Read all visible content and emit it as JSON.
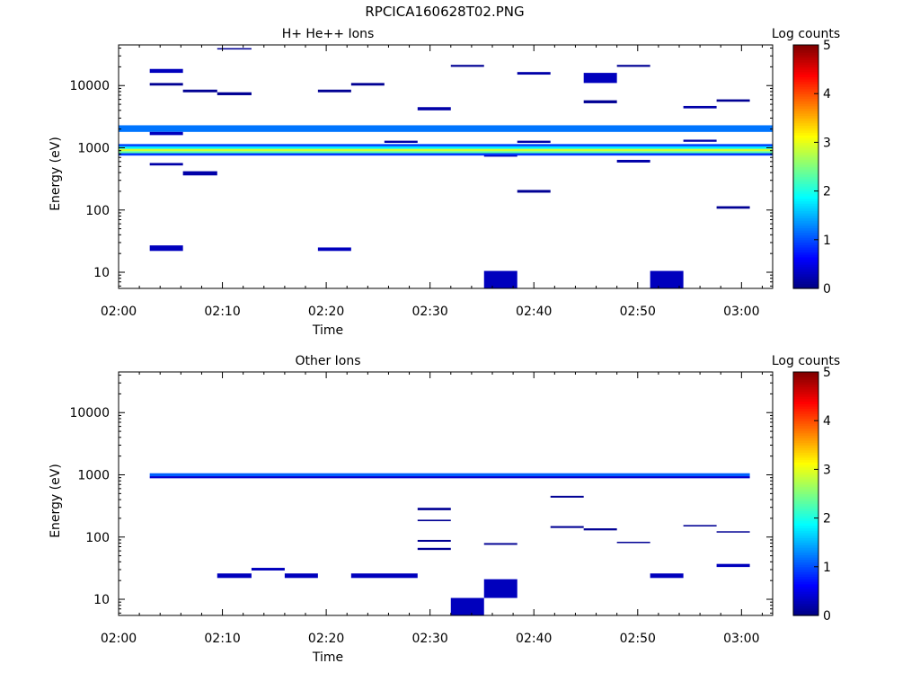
{
  "figure_title": "RPCICA160628T02.PNG",
  "chart_data": [
    {
      "type": "heatmap",
      "title": "H+ He++ Ions",
      "xlabel": "Time",
      "ylabel": "Energy (eV)",
      "x_ticks": [
        "02:00",
        "02:10",
        "02:20",
        "02:30",
        "02:40",
        "02:50",
        "03:00"
      ],
      "y_ticks": [
        "10",
        "100",
        "1000",
        "10000"
      ],
      "y_scale": "log",
      "xlim_minutes": [
        0,
        63
      ],
      "ylim": [
        5.5,
        45000
      ],
      "colorbar": {
        "label": "Log counts",
        "range": [
          0,
          5
        ],
        "ticks": [
          "0",
          "1",
          "2",
          "3",
          "4",
          "5"
        ]
      },
      "cells": [
        {
          "t0": 0,
          "t1": 63,
          "e0": 1800,
          "e1": 2300,
          "v": 1.2
        },
        {
          "t0": 0,
          "t1": 63,
          "e0": 1050,
          "e1": 1150,
          "v": 1.0
        },
        {
          "t0": 0,
          "t1": 63,
          "e0": 960,
          "e1": 1050,
          "v": 1.8
        },
        {
          "t0": 0,
          "t1": 63,
          "e0": 880,
          "e1": 960,
          "v": 2.9
        },
        {
          "t0": 0,
          "t1": 63,
          "e0": 820,
          "e1": 880,
          "v": 2.3
        },
        {
          "t0": 0,
          "t1": 63,
          "e0": 750,
          "e1": 820,
          "v": 0.9
        },
        {
          "t0": 3,
          "t1": 6.2,
          "e0": 16000,
          "e1": 18500,
          "v": 0.3
        },
        {
          "t0": 3,
          "t1": 6.2,
          "e0": 1600,
          "e1": 1800,
          "v": 0.3
        },
        {
          "t0": 3,
          "t1": 6.2,
          "e0": 10000,
          "e1": 11000,
          "v": 0.1
        },
        {
          "t0": 3,
          "t1": 6.2,
          "e0": 520,
          "e1": 570,
          "v": 0.2
        },
        {
          "t0": 3,
          "t1": 6.2,
          "e0": 22,
          "e1": 27,
          "v": 0.3
        },
        {
          "t0": 6.2,
          "t1": 9.5,
          "e0": 360,
          "e1": 420,
          "v": 0.2
        },
        {
          "t0": 6.2,
          "t1": 9.5,
          "e0": 7800,
          "e1": 8600,
          "v": 0.1
        },
        {
          "t0": 9.5,
          "t1": 12.8,
          "e0": 38000,
          "e1": 40000,
          "v": 0.1
        },
        {
          "t0": 9.5,
          "t1": 12.8,
          "e0": 7000,
          "e1": 7800,
          "v": 0.1
        },
        {
          "t0": 19.2,
          "t1": 22.4,
          "e0": 22,
          "e1": 25,
          "v": 0.3
        },
        {
          "t0": 19.2,
          "t1": 22.4,
          "e0": 7800,
          "e1": 8600,
          "v": 0.1
        },
        {
          "t0": 22.4,
          "t1": 25.6,
          "e0": 10000,
          "e1": 11000,
          "v": 0.1
        },
        {
          "t0": 25.6,
          "t1": 28.8,
          "e0": 1200,
          "e1": 1300,
          "v": 0.2
        },
        {
          "t0": 28.8,
          "t1": 32,
          "e0": 4000,
          "e1": 4500,
          "v": 0.2
        },
        {
          "t0": 32,
          "t1": 35.2,
          "e0": 20000,
          "e1": 21500,
          "v": 0.1
        },
        {
          "t0": 35.2,
          "t1": 38.4,
          "e0": 5.5,
          "e1": 10.5,
          "v": 0.3
        },
        {
          "t0": 35.2,
          "t1": 38.4,
          "e0": 720,
          "e1": 760,
          "v": 0.3
        },
        {
          "t0": 38.4,
          "t1": 41.6,
          "e0": 15000,
          "e1": 16500,
          "v": 0.2
        },
        {
          "t0": 38.4,
          "t1": 41.6,
          "e0": 1200,
          "e1": 1300,
          "v": 0.2
        },
        {
          "t0": 38.4,
          "t1": 41.6,
          "e0": 190,
          "e1": 210,
          "v": 0.1
        },
        {
          "t0": 44.8,
          "t1": 48,
          "e0": 11000,
          "e1": 16000,
          "v": 0.3
        },
        {
          "t0": 44.8,
          "t1": 48,
          "e0": 5200,
          "e1": 5800,
          "v": 0.1
        },
        {
          "t0": 48,
          "t1": 51.2,
          "e0": 580,
          "e1": 640,
          "v": 0.2
        },
        {
          "t0": 48,
          "t1": 51.2,
          "e0": 20000,
          "e1": 21500,
          "v": 0.1
        },
        {
          "t0": 51.2,
          "t1": 54.4,
          "e0": 5.5,
          "e1": 10.5,
          "v": 0.3
        },
        {
          "t0": 54.4,
          "t1": 57.6,
          "e0": 4300,
          "e1": 4700,
          "v": 0.2
        },
        {
          "t0": 54.4,
          "t1": 57.6,
          "e0": 1250,
          "e1": 1350,
          "v": 0.2
        },
        {
          "t0": 57.6,
          "t1": 60.8,
          "e0": 5500,
          "e1": 6000,
          "v": 0.1
        },
        {
          "t0": 57.6,
          "t1": 60.8,
          "e0": 105,
          "e1": 115,
          "v": 0.1
        }
      ]
    },
    {
      "type": "heatmap",
      "title": "Other Ions",
      "xlabel": "Time",
      "ylabel": "Energy (eV)",
      "x_ticks": [
        "02:00",
        "02:10",
        "02:20",
        "02:30",
        "02:40",
        "02:50",
        "03:00"
      ],
      "y_ticks": [
        "10",
        "100",
        "1000",
        "10000"
      ],
      "y_scale": "log",
      "xlim_minutes": [
        0,
        63
      ],
      "ylim": [
        5.5,
        45000
      ],
      "colorbar": {
        "label": "Log counts",
        "range": [
          0,
          5
        ],
        "ticks": [
          "0",
          "1",
          "2",
          "3",
          "4",
          "5"
        ]
      },
      "cells": [
        {
          "t0": 3,
          "t1": 60.8,
          "e0": 950,
          "e1": 1060,
          "v": 1.1
        },
        {
          "t0": 3,
          "t1": 60.8,
          "e0": 880,
          "e1": 950,
          "v": 0.4
        },
        {
          "t0": 9.5,
          "t1": 12.8,
          "e0": 22,
          "e1": 26,
          "v": 0.3
        },
        {
          "t0": 12.8,
          "t1": 16,
          "e0": 29,
          "e1": 32,
          "v": 0.3
        },
        {
          "t0": 16,
          "t1": 19.2,
          "e0": 22,
          "e1": 26,
          "v": 0.3
        },
        {
          "t0": 22.4,
          "t1": 28.8,
          "e0": 22,
          "e1": 26,
          "v": 0.3
        },
        {
          "t0": 28.8,
          "t1": 32,
          "e0": 270,
          "e1": 295,
          "v": 0.1
        },
        {
          "t0": 28.8,
          "t1": 32,
          "e0": 180,
          "e1": 190,
          "v": 0.1
        },
        {
          "t0": 28.8,
          "t1": 32,
          "e0": 84,
          "e1": 90,
          "v": 0.1
        },
        {
          "t0": 28.8,
          "t1": 32,
          "e0": 62,
          "e1": 67,
          "v": 0.1
        },
        {
          "t0": 32,
          "t1": 35.2,
          "e0": 5.5,
          "e1": 10.5,
          "v": 0.3
        },
        {
          "t0": 35.2,
          "t1": 38.4,
          "e0": 10.5,
          "e1": 21,
          "v": 0.3
        },
        {
          "t0": 35.2,
          "t1": 38.4,
          "e0": 75,
          "e1": 80,
          "v": 0.1
        },
        {
          "t0": 41.6,
          "t1": 44.8,
          "e0": 430,
          "e1": 460,
          "v": 0.1
        },
        {
          "t0": 41.6,
          "t1": 44.8,
          "e0": 140,
          "e1": 150,
          "v": 0.1
        },
        {
          "t0": 44.8,
          "t1": 48,
          "e0": 128,
          "e1": 138,
          "v": 0.1
        },
        {
          "t0": 48,
          "t1": 51.2,
          "e0": 80,
          "e1": 84,
          "v": 0.1
        },
        {
          "t0": 51.2,
          "t1": 54.4,
          "e0": 22,
          "e1": 26,
          "v": 0.3
        },
        {
          "t0": 54.4,
          "t1": 57.6,
          "e0": 148,
          "e1": 156,
          "v": 0.1
        },
        {
          "t0": 57.6,
          "t1": 60.8,
          "e0": 118,
          "e1": 124,
          "v": 0.1
        },
        {
          "t0": 57.6,
          "t1": 60.8,
          "e0": 33,
          "e1": 37,
          "v": 0.3
        }
      ]
    }
  ]
}
